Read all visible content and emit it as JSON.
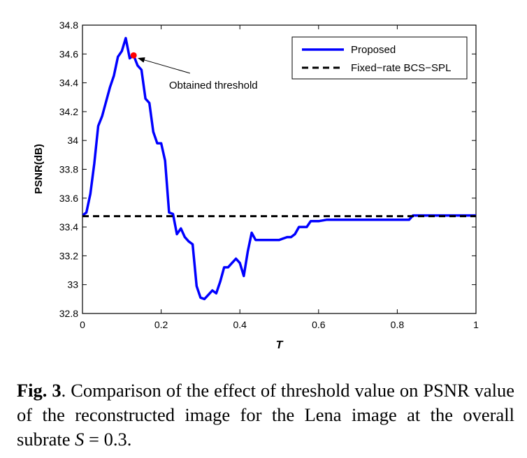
{
  "caption": {
    "label": "Fig. 3",
    "text_before_math": ". Comparison of the effect of threshold value on PSNR value of the reconstructed image for the Lena image at the overall subrate ",
    "math_var": "S",
    "math_rest": " = 0.3."
  },
  "chart_data": {
    "type": "line",
    "xlabel": "T",
    "ylabel": "PSNR(dB)",
    "xlim": [
      0,
      1
    ],
    "ylim": [
      32.8,
      34.8
    ],
    "xticks": [
      0,
      0.2,
      0.4,
      0.6,
      0.8,
      1
    ],
    "xtick_labels": [
      "0",
      "0.2",
      "0.4",
      "0.6",
      "0.8",
      "1"
    ],
    "yticks": [
      32.8,
      33,
      33.2,
      33.4,
      33.6,
      33.8,
      34,
      34.2,
      34.4,
      34.6,
      34.8
    ],
    "ytick_labels": [
      "32.8",
      "33",
      "33.2",
      "33.4",
      "33.6",
      "33.8",
      "34",
      "34.2",
      "34.4",
      "34.6",
      "34.8"
    ],
    "grid": false,
    "legend_placement": "top-right",
    "series": [
      {
        "name": "Proposed",
        "color": "#0000ff",
        "style": "solid",
        "x": [
          0,
          0.01,
          0.02,
          0.03,
          0.04,
          0.05,
          0.06,
          0.07,
          0.08,
          0.09,
          0.1,
          0.11,
          0.12,
          0.13,
          0.14,
          0.15,
          0.16,
          0.17,
          0.18,
          0.19,
          0.2,
          0.21,
          0.22,
          0.23,
          0.24,
          0.25,
          0.26,
          0.27,
          0.28,
          0.29,
          0.3,
          0.31,
          0.32,
          0.33,
          0.34,
          0.35,
          0.36,
          0.37,
          0.38,
          0.39,
          0.4,
          0.41,
          0.42,
          0.43,
          0.44,
          0.45,
          0.46,
          0.47,
          0.48,
          0.49,
          0.5,
          0.51,
          0.52,
          0.53,
          0.54,
          0.55,
          0.56,
          0.57,
          0.58,
          0.59,
          0.6,
          0.62,
          0.65,
          0.7,
          0.75,
          0.8,
          0.83,
          0.84,
          0.86,
          0.9,
          0.95,
          1
        ],
        "y": [
          33.48,
          33.5,
          33.63,
          33.84,
          34.1,
          34.17,
          34.27,
          34.37,
          34.45,
          34.58,
          34.62,
          34.71,
          34.57,
          34.59,
          34.52,
          34.49,
          34.29,
          34.26,
          34.06,
          33.98,
          33.98,
          33.86,
          33.5,
          33.49,
          33.35,
          33.39,
          33.33,
          33.3,
          33.28,
          32.99,
          32.91,
          32.9,
          32.93,
          32.96,
          32.94,
          33.02,
          33.12,
          33.12,
          33.15,
          33.18,
          33.15,
          33.06,
          33.23,
          33.36,
          33.31,
          33.31,
          33.31,
          33.31,
          33.31,
          33.31,
          33.31,
          33.32,
          33.33,
          33.33,
          33.35,
          33.4,
          33.4,
          33.4,
          33.44,
          33.44,
          33.44,
          33.45,
          33.45,
          33.45,
          33.45,
          33.45,
          33.45,
          33.48,
          33.48,
          33.48,
          33.48,
          33.48
        ]
      },
      {
        "name": "Fixed−rate BCS−SPL",
        "color": "#000000",
        "style": "dashed",
        "x": [
          0,
          1
        ],
        "y": [
          33.475,
          33.475
        ]
      }
    ],
    "highlight_point": {
      "x": 0.13,
      "y": 34.59,
      "color": "#ff0000"
    },
    "annotation": {
      "text": "Obtained threshold",
      "points_to": {
        "x": 0.135,
        "y": 34.58
      },
      "text_at": {
        "x": 0.22,
        "y": 34.36
      }
    }
  }
}
